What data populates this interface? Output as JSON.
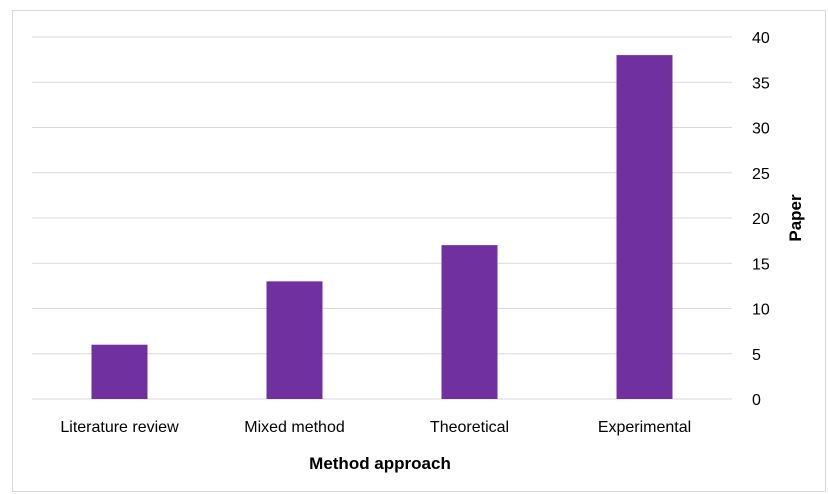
{
  "chart_data": {
    "type": "bar",
    "title": "",
    "xlabel": "Method approach",
    "ylabel": "Paper",
    "categories": [
      "Literature review",
      "Mixed method",
      "Theoretical",
      "Experimental"
    ],
    "values": [
      6,
      13,
      17,
      38
    ],
    "ylim": [
      0,
      40
    ],
    "yticks": [
      0,
      5,
      10,
      15,
      20,
      25,
      30,
      35,
      40
    ],
    "y_axis_side": "right",
    "grid": true,
    "legend": "none",
    "bar_color": "#7030a0",
    "grid_color": "#d9d9d9"
  }
}
